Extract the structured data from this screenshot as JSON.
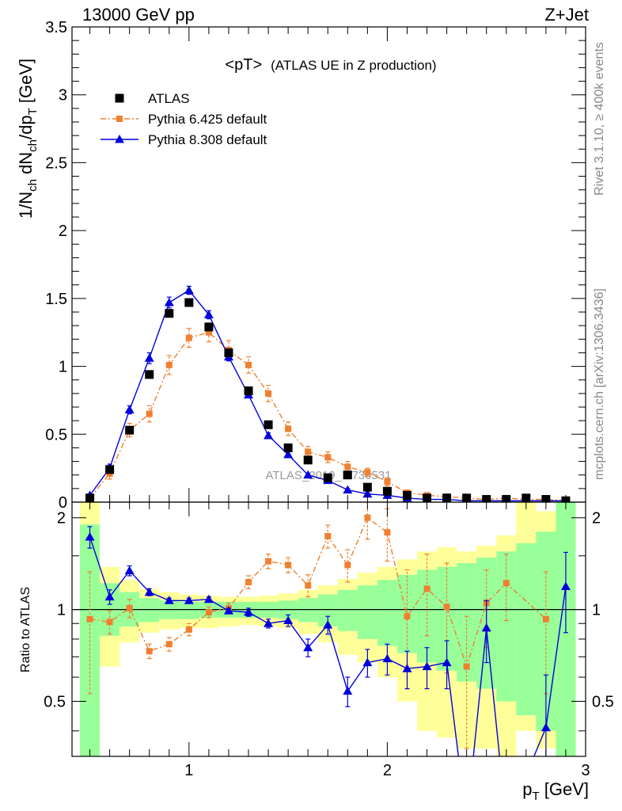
{
  "header": {
    "left": "13000 GeV pp",
    "right": "Z+Jet"
  },
  "side_text": {
    "rivet": "Rivet 3.1.10, ≥ 400k events",
    "mcplots": "mcplots.cern.ch [arXiv:1306.3436]"
  },
  "watermark": "ATLAS_2019_I1736531",
  "chart_data": [
    {
      "type": "scatter",
      "title": "<pT>",
      "subtitle": "(ATLAS UE in Z production)",
      "ylabel": "1/N_ch dN_ch/dp_T [GeV]",
      "xlabel": "",
      "xlim": [
        0.41,
        3.0
      ],
      "ylim": [
        0,
        3.5
      ],
      "yticks": [
        0,
        0.5,
        1,
        1.5,
        2,
        2.5,
        3,
        3.5
      ],
      "ytick_labels": [
        "0",
        "0.5",
        "1",
        "1.5",
        "2",
        "2.5",
        "3",
        "3.5"
      ],
      "legend_position": "top-left",
      "x": [
        0.5,
        0.6,
        0.7,
        0.8,
        0.9,
        1.0,
        1.1,
        1.2,
        1.3,
        1.4,
        1.5,
        1.6,
        1.7,
        1.8,
        1.9,
        2.0,
        2.1,
        2.2,
        2.3,
        2.4,
        2.5,
        2.6,
        2.7,
        2.8,
        2.9
      ],
      "series": [
        {
          "name": "ATLAS",
          "color": "#000000",
          "marker": "square",
          "values": [
            0.03,
            0.24,
            0.53,
            0.94,
            1.39,
            1.47,
            1.29,
            1.1,
            0.82,
            0.57,
            0.4,
            0.31,
            0.18,
            0.2,
            0.11,
            0.08,
            0.05,
            0.03,
            0.03,
            0.03,
            0.02,
            0.02,
            0.03,
            0.02,
            0.01
          ]
        },
        {
          "name": "Pythia 6.425 default",
          "color": "#f07f2f",
          "marker": "square",
          "line": "dashdot",
          "values": [
            0.03,
            0.21,
            0.53,
            0.65,
            1.01,
            1.21,
            1.25,
            1.12,
            1.01,
            0.8,
            0.54,
            0.37,
            0.33,
            0.26,
            0.22,
            0.15,
            0.07,
            0.05,
            0.04,
            0.03,
            0.02,
            0.03,
            0.02,
            0.02,
            0.01
          ],
          "errors": [
            0.02,
            0.04,
            0.05,
            0.06,
            0.07,
            0.07,
            0.07,
            0.07,
            0.06,
            0.06,
            0.05,
            0.04,
            0.04,
            0.04,
            0.03,
            0.03,
            0.02,
            0.02,
            0.02,
            0.01,
            0.01,
            0.01,
            0.01,
            0.01,
            0.01
          ]
        },
        {
          "name": "Pythia 8.308 default",
          "color": "#0000dd",
          "marker": "triangle",
          "line": "solid",
          "values": [
            0.05,
            0.25,
            0.68,
            1.06,
            1.47,
            1.56,
            1.38,
            1.07,
            0.79,
            0.49,
            0.35,
            0.2,
            0.16,
            0.09,
            0.06,
            0.05,
            0.03,
            0.02,
            0.02,
            0.01,
            0.01,
            0.01,
            0.01,
            0.01,
            0.01
          ],
          "errors": [
            0.01,
            0.03,
            0.03,
            0.04,
            0.04,
            0.03,
            0.03,
            0.03,
            0.02,
            0.02,
            0.02,
            0.01,
            0.01,
            0.01,
            0.01,
            0.01,
            0.01,
            0.01,
            0.01,
            0.01,
            0.01,
            0.01,
            0.01,
            0.01,
            0.01
          ]
        }
      ]
    },
    {
      "type": "line",
      "ylabel": "Ratio to ATLAS",
      "xlabel": "p_T [GeV]",
      "xlim": [
        0.41,
        3.0
      ],
      "ylim": [
        0.33,
        2.25
      ],
      "log_y": true,
      "xticks": [
        1,
        2,
        3
      ],
      "xtick_labels": [
        "1",
        "2",
        "3"
      ],
      "yticks": [
        0.5,
        1,
        2
      ],
      "ytick_labels": [
        "0.5",
        "1",
        "2"
      ],
      "bin_edges": [
        0.45,
        0.55,
        0.65,
        0.75,
        0.85,
        0.95,
        1.05,
        1.15,
        1.25,
        1.35,
        1.45,
        1.55,
        1.65,
        1.75,
        1.85,
        1.95,
        2.05,
        2.15,
        2.25,
        2.35,
        2.45,
        2.55,
        2.65,
        2.75,
        2.85,
        2.95
      ],
      "bands": {
        "yellow_color": "#ffff99",
        "green_color": "#99ff99",
        "yellow_lo": [
          0.3,
          0.65,
          0.78,
          0.84,
          0.86,
          0.87,
          0.87,
          0.88,
          0.89,
          0.88,
          0.87,
          0.83,
          0.78,
          0.71,
          0.67,
          0.6,
          0.5,
          0.4,
          0.38,
          0.35,
          0.35,
          0.3,
          0.4,
          0.35,
          0.3
        ],
        "yellow_hi": [
          2.3,
          1.38,
          1.25,
          1.17,
          1.14,
          1.12,
          1.11,
          1.1,
          1.1,
          1.11,
          1.13,
          1.16,
          1.2,
          1.26,
          1.32,
          1.38,
          1.46,
          1.55,
          1.6,
          1.55,
          1.62,
          1.75,
          2.3,
          2.1,
          2.3
        ],
        "green_lo": [
          0.3,
          0.82,
          0.88,
          0.91,
          0.93,
          0.93,
          0.94,
          0.94,
          0.94,
          0.94,
          0.93,
          0.91,
          0.88,
          0.85,
          0.8,
          0.76,
          0.72,
          0.67,
          0.63,
          0.58,
          0.55,
          0.5,
          0.45,
          0.4,
          0.3
        ],
        "green_hi": [
          1.9,
          1.22,
          1.14,
          1.09,
          1.07,
          1.06,
          1.06,
          1.06,
          1.06,
          1.06,
          1.07,
          1.09,
          1.12,
          1.16,
          1.2,
          1.25,
          1.3,
          1.35,
          1.38,
          1.42,
          1.48,
          1.55,
          1.65,
          1.8,
          2.3
        ]
      },
      "x": [
        0.5,
        0.6,
        0.7,
        0.8,
        0.9,
        1.0,
        1.1,
        1.2,
        1.3,
        1.4,
        1.5,
        1.6,
        1.7,
        1.8,
        1.9,
        2.0,
        2.1,
        2.2,
        2.3,
        2.4,
        2.5,
        2.6,
        2.7,
        2.8,
        2.9
      ],
      "series": [
        {
          "name": "Pythia 6.425 default",
          "color": "#f07f2f",
          "marker": "square",
          "line": "dashdot",
          "values": [
            0.93,
            0.91,
            1.01,
            0.73,
            0.77,
            0.86,
            0.98,
            1.01,
            1.23,
            1.44,
            1.4,
            1.2,
            1.74,
            1.4,
            2.0,
            1.79,
            0.95,
            1.17,
            1.02,
            0.65,
            1.05,
            1.22,
            null,
            0.93,
            null
          ],
          "err_lo": [
            0.4,
            0.08,
            0.07,
            0.04,
            0.04,
            0.04,
            0.04,
            0.04,
            0.06,
            0.08,
            0.08,
            0.1,
            0.15,
            0.17,
            0.3,
            0.35,
            0.4,
            0.35,
            0.4,
            0.3,
            0.3,
            0.3,
            null,
            0.4,
            null
          ],
          "err_hi": [
            0.4,
            0.08,
            0.07,
            0.04,
            0.04,
            0.04,
            0.04,
            0.04,
            0.06,
            0.08,
            0.08,
            0.1,
            0.15,
            0.17,
            0.3,
            0.35,
            0.4,
            0.35,
            0.4,
            0.3,
            0.3,
            0.3,
            null,
            0.4,
            null
          ]
        },
        {
          "name": "Pythia 8.308 default",
          "color": "#0000dd",
          "marker": "triangle",
          "line": "solid",
          "values": [
            1.73,
            1.1,
            1.34,
            1.14,
            1.07,
            1.07,
            1.08,
            0.99,
            0.98,
            0.9,
            0.92,
            0.75,
            0.89,
            0.54,
            0.67,
            0.69,
            0.64,
            0.65,
            0.67,
            0.15,
            0.87,
            0.1,
            null,
            0.41,
            1.19
          ],
          "err_lo": [
            0.14,
            0.06,
            0.05,
            0.03,
            0.02,
            0.02,
            0.02,
            0.02,
            0.03,
            0.03,
            0.04,
            0.05,
            0.06,
            0.06,
            0.07,
            0.08,
            0.09,
            0.1,
            0.12,
            0.1,
            0.2,
            0.1,
            null,
            0.2,
            0.35
          ],
          "err_hi": [
            0.14,
            0.06,
            0.05,
            0.03,
            0.02,
            0.02,
            0.02,
            0.02,
            0.03,
            0.03,
            0.04,
            0.05,
            0.06,
            0.06,
            0.07,
            0.08,
            0.09,
            0.1,
            0.12,
            0.1,
            0.2,
            0.1,
            null,
            0.2,
            0.35
          ]
        }
      ]
    }
  ]
}
